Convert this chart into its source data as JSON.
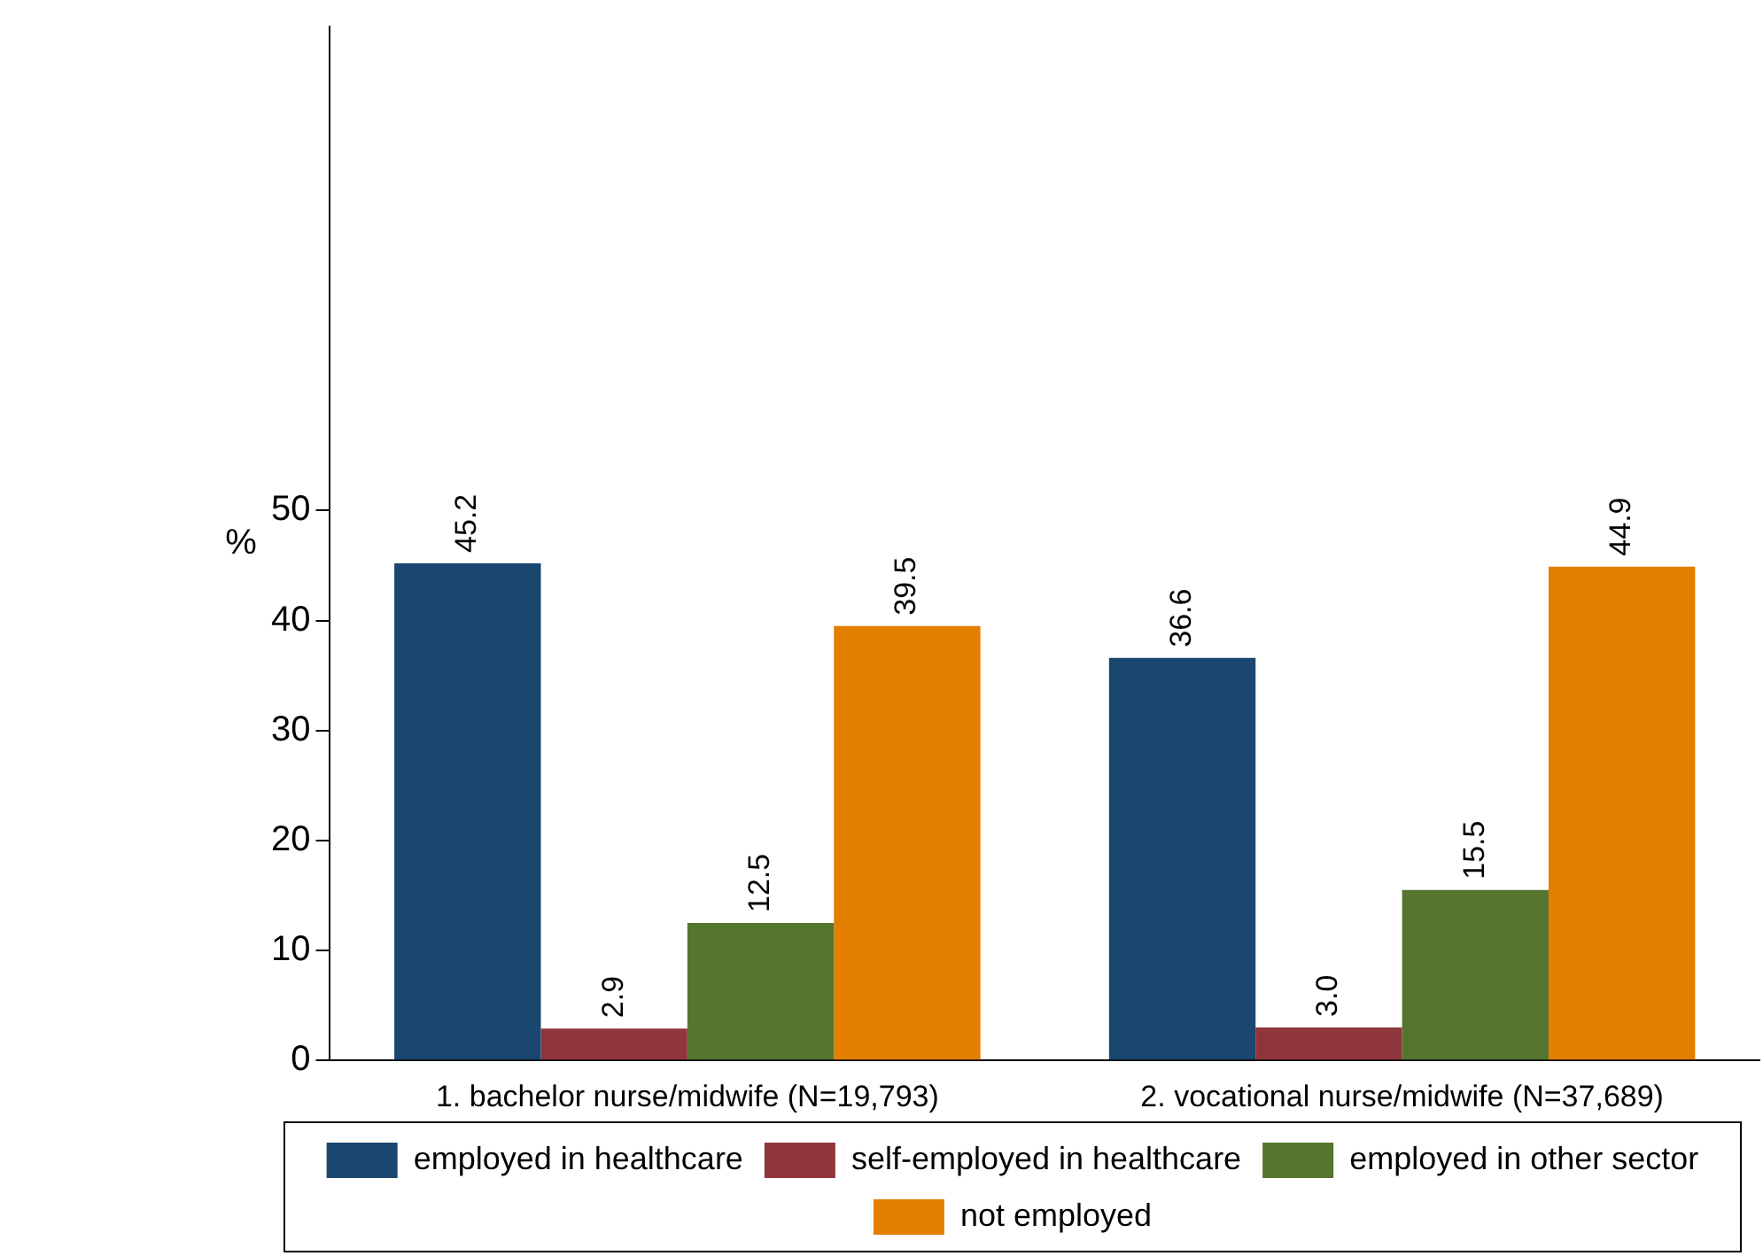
{
  "chart_data": {
    "type": "bar",
    "ylabel": "%",
    "categories": [
      "1. bachelor nurse/midwife (N=19,793)",
      "2. vocational nurse/midwife (N=37,689)"
    ],
    "series": [
      {
        "name": "employed in healthcare",
        "color": "#1a476f",
        "values": [
          45.2,
          36.6
        ],
        "value_labels": [
          "45.2",
          "36.6"
        ]
      },
      {
        "name": "self-employed in healthcare",
        "color": "#90353b",
        "values": [
          2.9,
          3.0
        ],
        "value_labels": [
          "2.9",
          "3.0"
        ]
      },
      {
        "name": "employed in other sector",
        "color": "#55752f",
        "values": [
          12.5,
          15.5
        ],
        "value_labels": [
          "12.5",
          "15.5"
        ]
      },
      {
        "name": "not employed",
        "color": "#e37e00",
        "values": [
          39.5,
          44.9
        ],
        "value_labels": [
          "39.5",
          "44.9"
        ]
      }
    ],
    "ylim": [
      0,
      94
    ],
    "yticks": [
      0,
      10,
      20,
      30,
      40,
      50
    ],
    "legend": "bottom"
  }
}
